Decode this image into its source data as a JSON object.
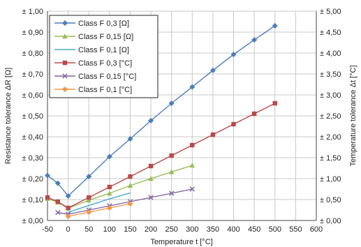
{
  "chart_data": {
    "type": "line",
    "title": "",
    "xlabel": "Temperature t [°C]",
    "ylabel": "Resistance tolerance ΔR [Ω]",
    "y2label": "Temperature tolerance Δt [°C]",
    "xlim": [
      -50,
      600
    ],
    "ylim": [
      0,
      1.0
    ],
    "y2lim": [
      0,
      5.0
    ],
    "x_ticks": [
      "-50",
      "0",
      "50",
      "100",
      "150",
      "200",
      "250",
      "300",
      "350",
      "400",
      "450",
      "500",
      "550",
      "600"
    ],
    "y_ticks": [
      "± 0,00",
      "± 0,10",
      "± 0,20",
      "± 0,30",
      "± 0,40",
      "± 0,50",
      "± 0,60",
      "± 0,70",
      "± 0,80",
      "± 0,90",
      "± 1,00"
    ],
    "y2_ticks": [
      "± 0,00",
      "± 0,50",
      "± 1,00",
      "± 1,50",
      "± 2,00",
      "± 2,50",
      "± 3,00",
      "± 3,50",
      "± 4,00",
      "± 4,50",
      "± 5,00"
    ],
    "grid": true,
    "legend_position": "top-left",
    "series": [
      {
        "name": "Class F 0,3 [Ω]",
        "axis": "left",
        "color": "#4a7ebb",
        "marker": "diamond",
        "x": [
          -50,
          -25,
          0,
          50,
          100,
          150,
          200,
          250,
          300,
          350,
          400,
          450,
          500
        ],
        "y": [
          0.215,
          0.178,
          0.117,
          0.21,
          0.305,
          0.39,
          0.477,
          0.56,
          0.638,
          0.717,
          0.793,
          0.863,
          0.93
        ]
      },
      {
        "name": "Class F 0,15 [Ω]",
        "axis": "left",
        "color": "#9bbb59",
        "marker": "triangle",
        "x": [
          -50,
          -25,
          0,
          50,
          100,
          150,
          200,
          250,
          300
        ],
        "y": [
          0.105,
          0.087,
          0.058,
          0.097,
          0.13,
          0.167,
          0.2,
          0.232,
          0.263
        ]
      },
      {
        "name": "Class F 0,1 [Ω]",
        "axis": "left",
        "color": "#4bacc6",
        "marker": "none",
        "x": [
          0,
          50,
          100,
          150
        ],
        "y": [
          0.039,
          0.072,
          0.103,
          0.132
        ]
      },
      {
        "name": "Class F 0,3 [°C]",
        "axis": "right",
        "color": "#b94a48",
        "marker": "square",
        "x": [
          -50,
          -25,
          0,
          50,
          100,
          150,
          200,
          250,
          300,
          350,
          400,
          450,
          500
        ],
        "y": [
          0.55,
          0.45,
          0.3,
          0.55,
          0.8,
          1.05,
          1.3,
          1.55,
          1.8,
          2.05,
          2.3,
          2.55,
          2.8
        ]
      },
      {
        "name": "Class F 0,15 [°C]",
        "axis": "right",
        "color": "#8064a2",
        "marker": "x",
        "x": [
          -25,
          0,
          50,
          100,
          150,
          200,
          250,
          300
        ],
        "y": [
          0.19,
          0.15,
          0.25,
          0.35,
          0.45,
          0.55,
          0.65,
          0.75
        ]
      },
      {
        "name": "Class F 0,1 [°C]",
        "axis": "right",
        "color": "#f79646",
        "marker": "circle",
        "x": [
          0,
          50,
          100,
          150
        ],
        "y": [
          0.1,
          0.2,
          0.3,
          0.4
        ]
      }
    ]
  }
}
